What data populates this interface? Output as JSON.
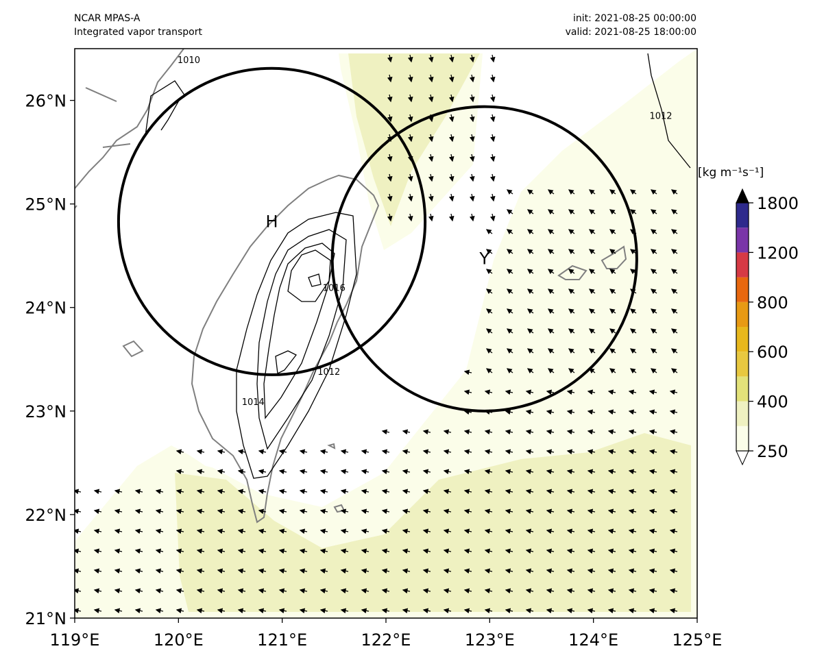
{
  "header": {
    "model": "NCAR MPAS-A",
    "product": "Integrated vapor transport",
    "init": "init: 2021-08-25 00:00:00",
    "valid": "valid: 2021-08-25 18:00:00"
  },
  "map": {
    "lon_range": [
      119,
      125
    ],
    "lat_range": [
      21,
      26.5
    ],
    "lon_ticks": [
      {
        "value": 119,
        "label": "119°E"
      },
      {
        "value": 120,
        "label": "120°E"
      },
      {
        "value": 121,
        "label": "121°E"
      },
      {
        "value": 122,
        "label": "122°E"
      },
      {
        "value": 123,
        "label": "123°E"
      },
      {
        "value": 124,
        "label": "124°E"
      },
      {
        "value": 125,
        "label": "125°E"
      }
    ],
    "lat_ticks": [
      {
        "value": 21,
        "label": "21°N"
      },
      {
        "value": 22,
        "label": "22°N"
      },
      {
        "value": 23,
        "label": "23°N"
      },
      {
        "value": 24,
        "label": "24°N"
      },
      {
        "value": 25,
        "label": "25°N"
      },
      {
        "value": 26,
        "label": "26°N"
      }
    ],
    "circles": [
      {
        "label": "H",
        "center_lon": 120.9,
        "center_lat": 24.83,
        "radius_deg": 1.48
      },
      {
        "label": "Y",
        "center_lon": 122.95,
        "center_lat": 24.47,
        "radius_deg": 1.47
      }
    ],
    "contour_labels": [
      {
        "text": "1010",
        "lon": 120.1,
        "lat": 26.36
      },
      {
        "text": "1012",
        "lon": 124.65,
        "lat": 25.82
      },
      {
        "text": "1016",
        "lon": 121.5,
        "lat": 24.16
      },
      {
        "text": "1012",
        "lon": 121.45,
        "lat": 23.35
      },
      {
        "text": "1014",
        "lon": 120.72,
        "lat": 23.06
      }
    ],
    "contour_unlabeled": [
      {
        "text": "1018"
      }
    ],
    "colors": {
      "land": "#7f7f7f",
      "ivt_250": "#fbfde9",
      "ivt_300": "#eff1c1",
      "contour": "#000000",
      "circle": "#000000"
    }
  },
  "colorbar": {
    "unit_label": "[kg m⁻¹s⁻¹]",
    "levels": [
      250,
      300,
      400,
      500,
      600,
      700,
      800,
      1000,
      1200,
      1500,
      1800
    ],
    "tick_values": [
      250,
      400,
      600,
      800,
      1200,
      1800
    ],
    "tick_labels": [
      "250",
      "400",
      "600",
      "800",
      "1200",
      "1800"
    ],
    "colors": [
      "#fbfde9",
      "#eff1c1",
      "#e3e27a",
      "#e8c840",
      "#e8b81d",
      "#e89a14",
      "#e8680f",
      "#d63a45",
      "#7a35a8",
      "#2e2a8c"
    ],
    "extend": "both"
  }
}
